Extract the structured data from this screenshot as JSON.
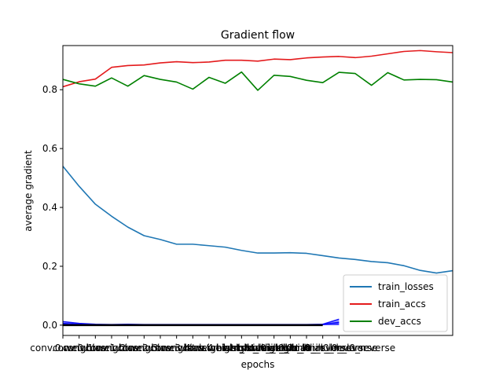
{
  "chart_data": {
    "type": "line",
    "title": "Gradient flow",
    "xlabel": "epochs",
    "ylabel": "average gradient",
    "xlim": [
      0,
      24
    ],
    "ylim": [
      -0.035,
      0.95
    ],
    "yticks": [
      0.0,
      0.2,
      0.4,
      0.6,
      0.8
    ],
    "ytick_labels": [
      "0.0",
      "0.2",
      "0.4",
      "0.6",
      "0.8"
    ],
    "xtick_labels": [
      "conv.0.weight",
      "conv.0.bias",
      "conv.1.weight",
      "conv.1.bias",
      "conv.2.weight",
      "conv.2.bias",
      "conv.3.weight",
      "conv.3.bias",
      "conv.4.weight",
      "conv.4.bias",
      "lstm.weight_ih_l0",
      "lstm.weight_hh_l0",
      "lstm.bias_ih_l0",
      "lstm.bias_hh_l0",
      "lstm.weight_ih_l0_reverse",
      "lstm.weight_hh_l0_reverse",
      "lstm.bias_ih_l0_reverse",
      "lstm.bias_hh_l0_reverse"
    ],
    "legend_position": "lower right",
    "grid": false,
    "series": [
      {
        "name": "train_losses",
        "color": "#1f77b4",
        "x": [
          0,
          1,
          2,
          3,
          4,
          5,
          6,
          7,
          8,
          9,
          10,
          11,
          12,
          13,
          14,
          15,
          16,
          17,
          18,
          19,
          20,
          21,
          22,
          23,
          24
        ],
        "values": [
          0.54,
          0.472,
          0.411,
          0.37,
          0.333,
          0.304,
          0.291,
          0.275,
          0.275,
          0.27,
          0.265,
          0.254,
          0.245,
          0.245,
          0.246,
          0.244,
          0.236,
          0.228,
          0.223,
          0.216,
          0.212,
          0.202,
          0.186,
          0.177,
          0.185
        ]
      },
      {
        "name": "train_accs",
        "color": "#e41a1c",
        "x": [
          0,
          1,
          2,
          3,
          4,
          5,
          6,
          7,
          8,
          9,
          10,
          11,
          12,
          13,
          14,
          15,
          16,
          17,
          18,
          19,
          20,
          21,
          22,
          23,
          24
        ],
        "values": [
          0.81,
          0.827,
          0.836,
          0.876,
          0.882,
          0.884,
          0.891,
          0.895,
          0.892,
          0.894,
          0.9,
          0.9,
          0.897,
          0.904,
          0.902,
          0.908,
          0.911,
          0.913,
          0.909,
          0.914,
          0.922,
          0.93,
          0.933,
          0.929,
          0.926
        ]
      },
      {
        "name": "dev_accs",
        "color": "#008000",
        "x": [
          0,
          1,
          2,
          3,
          4,
          5,
          6,
          7,
          8,
          9,
          10,
          11,
          12,
          13,
          14,
          15,
          16,
          17,
          18,
          19,
          20,
          21,
          22,
          23,
          24
        ],
        "values": [
          0.835,
          0.82,
          0.812,
          0.84,
          0.812,
          0.848,
          0.835,
          0.826,
          0.802,
          0.842,
          0.822,
          0.86,
          0.798,
          0.849,
          0.845,
          0.832,
          0.824,
          0.859,
          0.855,
          0.815,
          0.858,
          0.833,
          0.835,
          0.834,
          0.826
        ]
      }
    ],
    "gradient_series": [
      {
        "role": "max",
        "color": "#0000ff",
        "opacity": 0.35,
        "x": [
          0,
          1,
          2,
          3,
          4,
          5,
          6,
          7,
          8,
          9,
          10,
          11,
          12,
          13,
          14,
          15,
          16,
          17
        ],
        "values": [
          0.012,
          0.006,
          0.003,
          0.002,
          0.003,
          0.002,
          0.002,
          0.002,
          0.002,
          0.002,
          0.002,
          0.002,
          0.002,
          0.002,
          0.002,
          0.002,
          0.003,
          0.02
        ]
      },
      {
        "role": "mean",
        "color": "#0000ff",
        "opacity": 0.6,
        "x": [
          0,
          1,
          2,
          3,
          4,
          5,
          6,
          7,
          8,
          9,
          10,
          11,
          12,
          13,
          14,
          15,
          16,
          17
        ],
        "values": [
          0.006,
          0.003,
          0.001,
          0.001,
          0.001,
          0.001,
          0.001,
          0.001,
          0.001,
          0.001,
          0.001,
          0.001,
          0.001,
          0.001,
          0.001,
          0.001,
          0.002,
          0.01
        ]
      },
      {
        "role": "zero-line",
        "color": "#000000",
        "opacity": 1,
        "x": [
          0,
          16
        ],
        "values": [
          0,
          0
        ]
      }
    ]
  }
}
